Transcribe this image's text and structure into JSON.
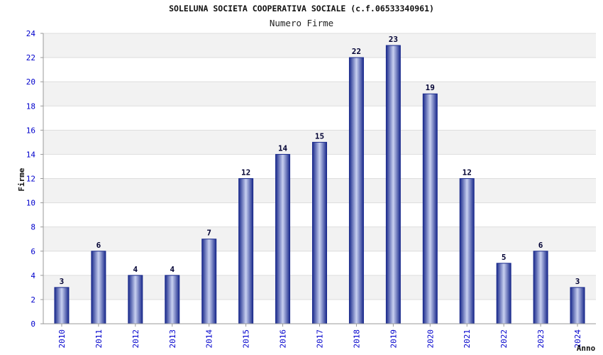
{
  "chart_data": {
    "type": "bar",
    "title": "SOLELUNA SOCIETA COOPERATIVA SOCIALE (c.f.06533340961)",
    "subtitle": "Numero Firme",
    "xlabel": "Anno",
    "ylabel": "Firme",
    "categories": [
      "2010",
      "2011",
      "2012",
      "2013",
      "2014",
      "2015",
      "2016",
      "2017",
      "2018",
      "2019",
      "2020",
      "2021",
      "2022",
      "2023",
      "2024"
    ],
    "values": [
      3,
      6,
      4,
      4,
      7,
      12,
      14,
      15,
      22,
      23,
      19,
      12,
      5,
      6,
      3
    ],
    "ylim": [
      0,
      24
    ],
    "yticks": [
      0,
      2,
      4,
      6,
      8,
      10,
      12,
      14,
      16,
      18,
      20,
      22,
      24
    ],
    "grid": true,
    "data_labels": true,
    "colors": {
      "bar_dark": "#1a2a8c",
      "bar_light": "#c8d0f0",
      "tick_label": "#0000cc",
      "band_alt": "#f2f2f2",
      "gridline": "#dddddd"
    }
  }
}
